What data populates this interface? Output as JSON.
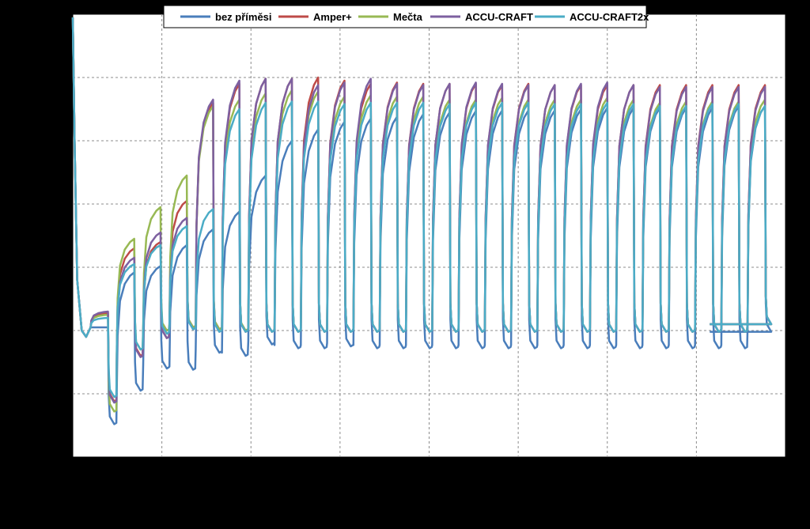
{
  "background_color": "#000000",
  "plot_background_color": "#ffffff",
  "gridline_color": "#8c8c8c",
  "chart_data": {
    "type": "line",
    "title": "",
    "xlabel": "",
    "ylabel": "",
    "xlim": [
      0,
      8
    ],
    "ylim": [
      0,
      7
    ],
    "x_tick_labels_visible": false,
    "y_tick_labels_visible": false,
    "grid": true,
    "grid_style": "dashed",
    "x_gridlines": [
      1,
      2,
      3,
      4,
      5,
      6,
      7
    ],
    "y_gridlines": [
      1,
      2,
      3,
      4,
      5,
      6
    ],
    "legend_position": "top-center",
    "cycle_count": 26,
    "x_end": 7.15,
    "series": [
      {
        "name": "bez příměsi",
        "color": "#4a7ebb",
        "first_cycle_x": 0.2,
        "cycle_period": 0.295,
        "charge_peaks": [
          2.05,
          2.92,
          3.02,
          3.35,
          3.6,
          3.88,
          4.45,
          5.0,
          5.18,
          5.3,
          5.35,
          5.38,
          5.42,
          5.45,
          5.47,
          5.48,
          5.48,
          5.48,
          5.5,
          5.52,
          5.52,
          5.52,
          5.52,
          5.52,
          5.55,
          5.55
        ],
        "discharge_troughs": [
          0.52,
          1.05,
          1.4,
          1.38,
          1.65,
          1.6,
          1.78,
          1.72,
          1.72,
          1.75,
          1.72,
          1.72,
          1.72,
          1.72,
          1.72,
          1.72,
          1.72,
          1.72,
          1.72,
          1.72,
          1.72,
          1.72,
          1.72,
          1.72,
          1.72,
          1.98
        ]
      },
      {
        "name": "Amper+",
        "color": "#be4b48",
        "first_cycle_x": 0.2,
        "cycle_period": 0.295,
        "charge_peaks": [
          2.28,
          3.3,
          3.4,
          4.05,
          5.6,
          5.9,
          5.98,
          5.98,
          6.0,
          5.95,
          5.9,
          5.92,
          5.9,
          5.9,
          5.9,
          5.88,
          5.9,
          5.88,
          5.88,
          5.88,
          5.88,
          5.88,
          5.88,
          5.88,
          5.88,
          5.88
        ],
        "discharge_troughs": [
          0.88,
          1.6,
          1.88,
          2.05,
          2.02,
          1.98,
          1.98,
          1.98,
          1.98,
          1.98,
          1.98,
          1.98,
          1.98,
          1.98,
          1.98,
          1.98,
          1.98,
          1.98,
          1.98,
          1.98,
          1.98,
          1.98,
          1.98,
          1.98,
          1.98,
          2.1
        ]
      },
      {
        "name": "Mečta",
        "color": "#98b954",
        "first_cycle_x": 0.2,
        "cycle_period": 0.295,
        "charge_peaks": [
          2.25,
          3.45,
          3.95,
          4.45,
          5.55,
          5.65,
          5.75,
          5.8,
          5.78,
          5.7,
          5.72,
          5.7,
          5.7,
          5.65,
          5.65,
          5.68,
          5.65,
          5.65,
          5.65,
          5.68,
          5.65,
          5.6,
          5.62,
          5.62,
          5.62,
          5.65
        ],
        "discharge_troughs": [
          0.72,
          1.7,
          2.0,
          2.05,
          2.02,
          2.0,
          1.98,
          1.98,
          1.98,
          1.98,
          1.98,
          1.98,
          1.98,
          1.98,
          1.98,
          1.98,
          1.98,
          1.98,
          1.98,
          1.98,
          1.98,
          1.98,
          1.98,
          1.98,
          1.98,
          2.1
        ]
      },
      {
        "name": "ACCU-CRAFT",
        "color": "#7d60a0",
        "first_cycle_x": 0.2,
        "cycle_period": 0.295,
        "charge_peaks": [
          2.3,
          3.15,
          3.55,
          3.78,
          5.65,
          5.95,
          5.98,
          5.98,
          5.88,
          5.92,
          5.98,
          5.9,
          5.88,
          5.9,
          5.92,
          5.9,
          5.88,
          5.88,
          5.9,
          5.92,
          5.88,
          5.85,
          5.85,
          5.85,
          5.85,
          5.85
        ],
        "discharge_troughs": [
          0.86,
          1.58,
          1.88,
          2.02,
          1.98,
          1.98,
          1.98,
          1.98,
          1.98,
          1.98,
          1.98,
          1.98,
          1.98,
          1.98,
          1.98,
          1.98,
          1.98,
          1.98,
          1.98,
          1.98,
          1.98,
          1.98,
          1.98,
          1.98,
          1.98,
          2.1
        ]
      },
      {
        "name": "ACCU-CRAFT2x",
        "color": "#4bacc6",
        "first_cycle_x": 0.2,
        "cycle_period": 0.295,
        "charge_peaks": [
          2.2,
          3.05,
          3.35,
          3.65,
          3.92,
          5.5,
          5.6,
          5.62,
          5.62,
          5.58,
          5.6,
          5.6,
          5.6,
          5.58,
          5.6,
          5.6,
          5.6,
          5.58,
          5.58,
          5.6,
          5.58,
          5.55,
          5.55,
          5.58,
          5.58,
          5.55
        ],
        "discharge_troughs": [
          0.95,
          1.7,
          1.95,
          2.02,
          1.98,
          1.98,
          1.98,
          1.98,
          1.98,
          1.98,
          1.98,
          1.98,
          1.98,
          1.98,
          1.98,
          1.98,
          1.98,
          1.98,
          1.98,
          1.98,
          1.98,
          1.98,
          1.98,
          1.98,
          1.98,
          2.1
        ]
      }
    ]
  }
}
